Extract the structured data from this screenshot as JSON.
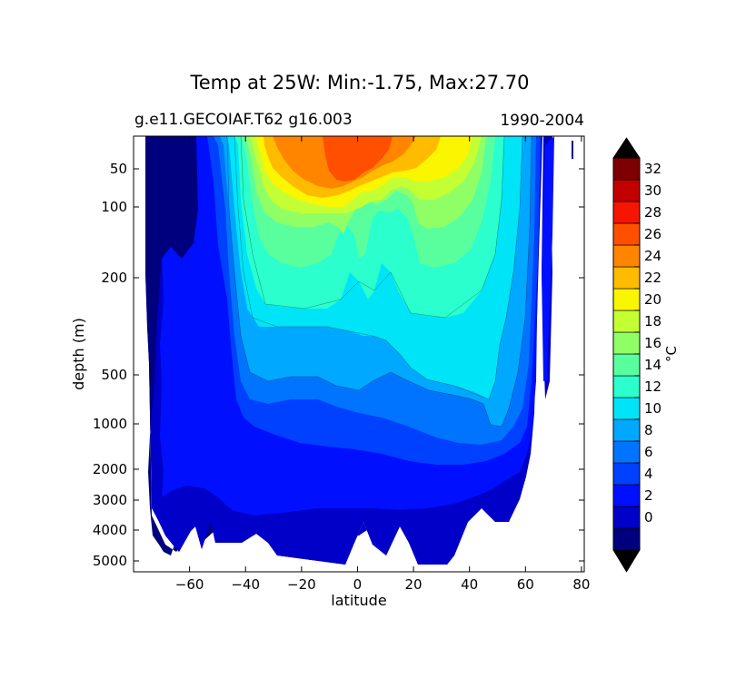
{
  "chart_data": {
    "type": "filled-contour",
    "title": "Temp at 25W: Min:-1.75, Max:27.70",
    "subtitle_left": "g.e11.GECOIAF.T62 g16.003",
    "subtitle_right": "1990-2004",
    "xlabel": "latitude",
    "ylabel": "depth (m)",
    "xlim": [
      -80,
      81
    ],
    "ylim": [
      5500,
      10
    ],
    "x_ticks": [
      -60,
      -40,
      -20,
      0,
      20,
      40,
      60,
      80
    ],
    "x_tick_labels": [
      "−60",
      "−40",
      "−20",
      "0",
      "20",
      "40",
      "60",
      "80"
    ],
    "y_ticks": [
      50,
      100,
      200,
      500,
      1000,
      2000,
      3000,
      4000,
      5000
    ],
    "y_tick_labels": [
      "50",
      "100",
      "200",
      "500",
      "1000",
      "2000",
      "3000",
      "4000",
      "5000"
    ],
    "colorbar": {
      "label": "°C",
      "levels": [
        -2,
        0,
        2,
        4,
        6,
        8,
        10,
        12,
        14,
        16,
        18,
        20,
        22,
        24,
        26,
        28,
        30,
        32,
        34
      ],
      "tick_values": [
        0,
        2,
        4,
        6,
        8,
        10,
        12,
        14,
        16,
        18,
        20,
        22,
        24,
        26,
        28,
        30,
        32
      ],
      "colors": [
        "#00007f",
        "#0000c8",
        "#0010ff",
        "#0040ff",
        "#0074ff",
        "#00a8ff",
        "#00e4f7",
        "#2affcd",
        "#5aff9d",
        "#90ff66",
        "#c4ff33",
        "#faf500",
        "#ffbb00",
        "#ff8500",
        "#ff4f00",
        "#f51500",
        "#c20000",
        "#7f0000"
      ],
      "extend": "both",
      "under_color": "#000000",
      "over_color": "#000000"
    }
  }
}
